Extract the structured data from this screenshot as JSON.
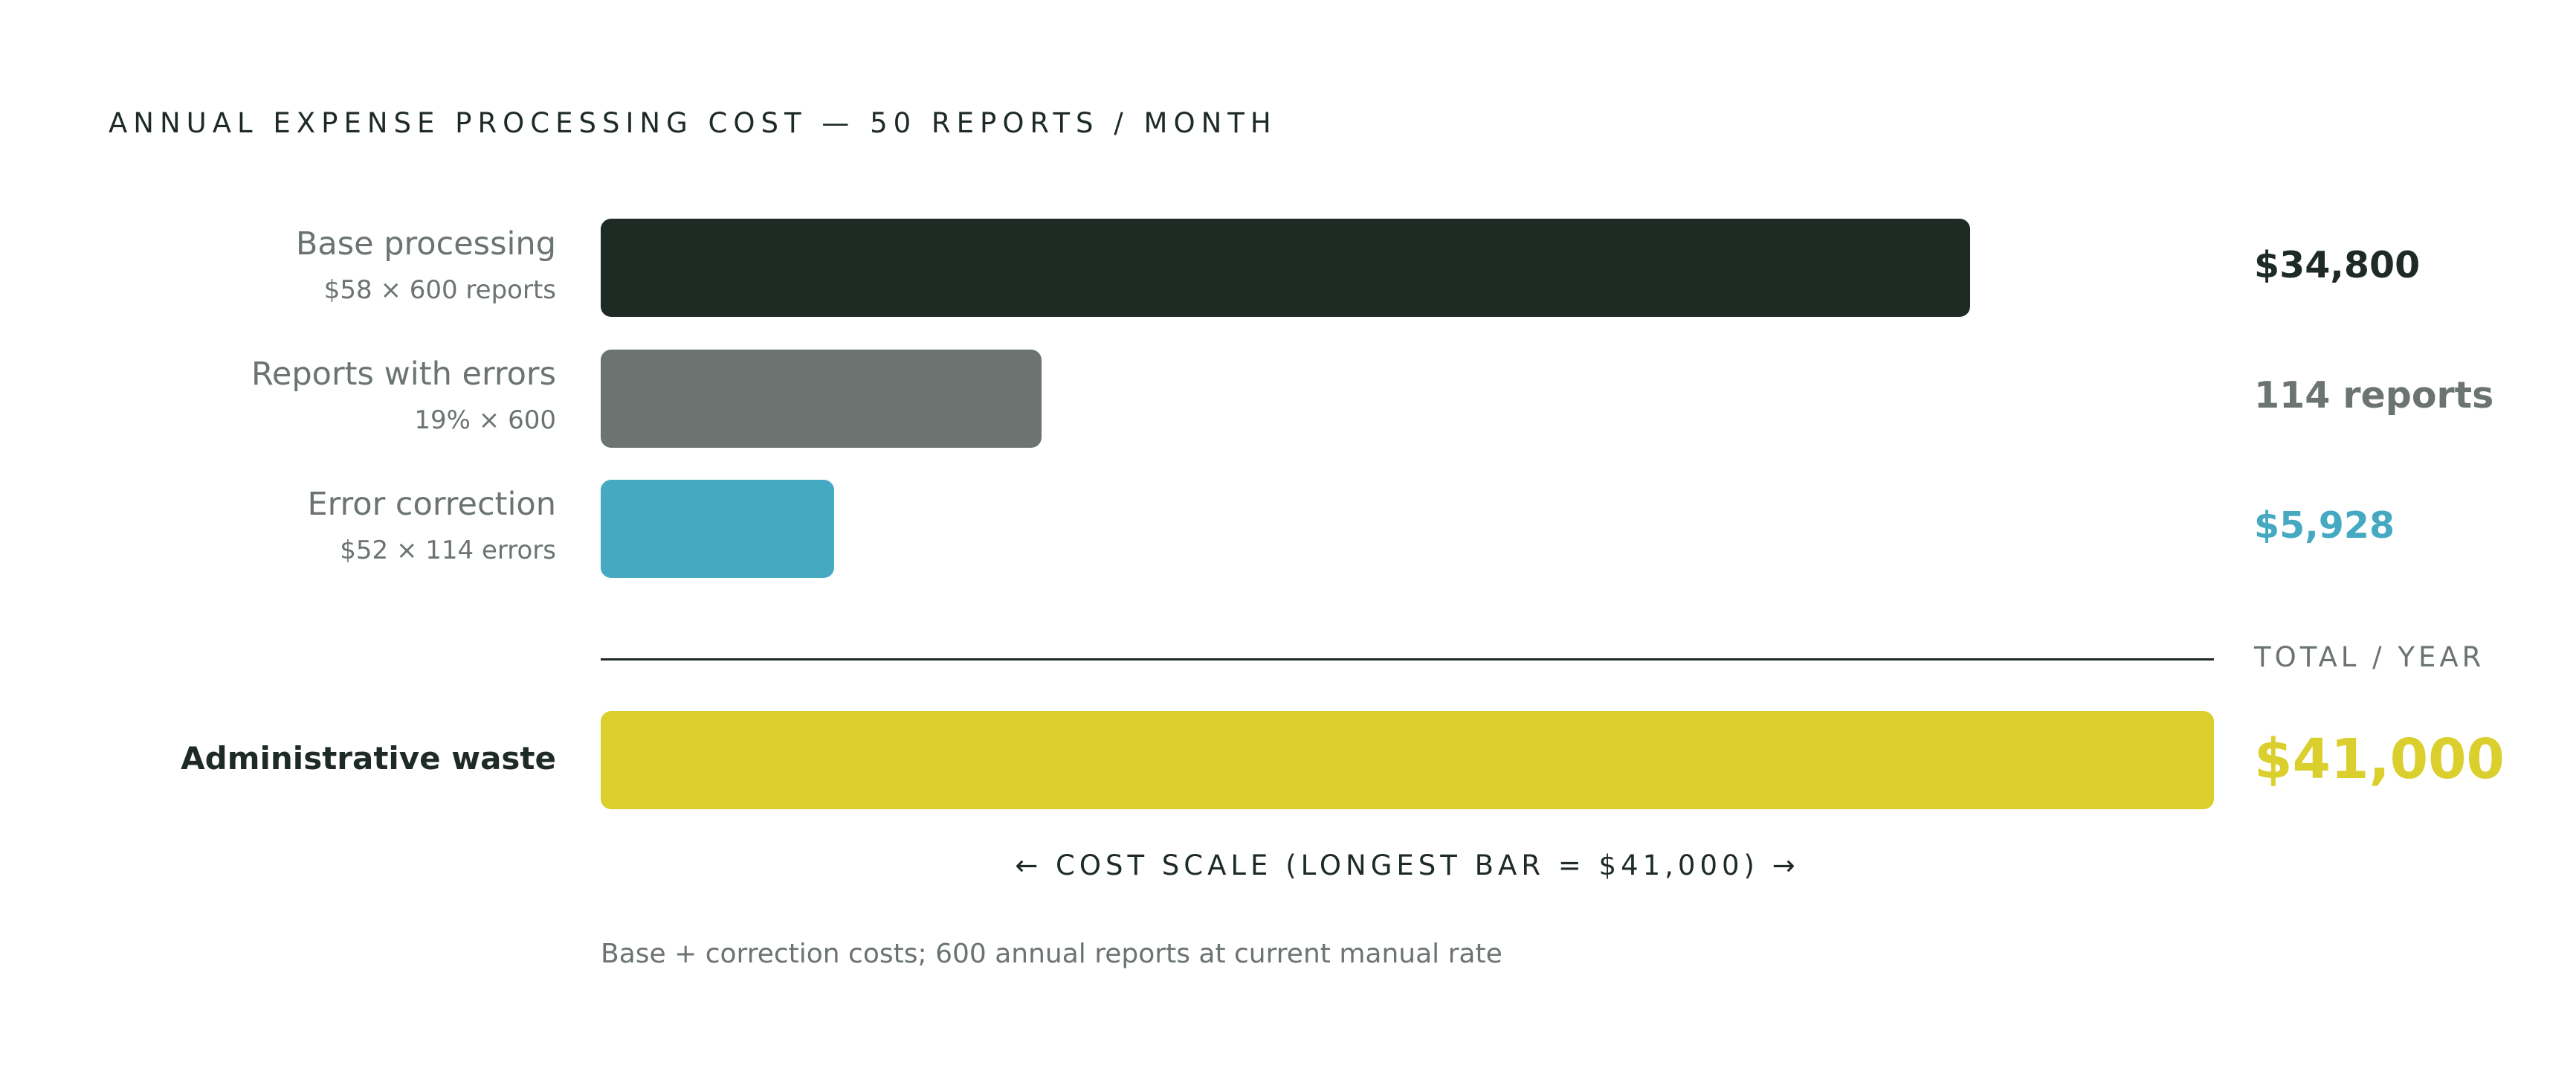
{
  "title": "ANNUAL EXPENSE PROCESSING COST — 50 REPORTS / MONTH",
  "colors": {
    "ink": "#1e2b25",
    "gray": "#6b7470",
    "teal": "#45a9c2",
    "yellow": "#dbcf2e"
  },
  "chart_data": {
    "type": "bar",
    "orientation": "horizontal",
    "scale_max": 41000,
    "scale_note": "← COST SCALE (LONGEST BAR = $41,000) →",
    "rows": [
      {
        "label": "Base processing",
        "sublabel": "$58 × 600 reports",
        "value": 34800,
        "display": "$34,800",
        "color": "#1e2b25"
      },
      {
        "label": "Reports with errors",
        "sublabel": "19% × 600",
        "value": 11200,
        "display": "114 reports",
        "color": "#6b7470"
      },
      {
        "label": "Error correction",
        "sublabel": "$52 × 114 errors",
        "value": 5928,
        "display": "$5,928",
        "color": "#45a9c2"
      }
    ],
    "total": {
      "caption": "TOTAL / YEAR",
      "label": "Administrative waste",
      "value": 41000,
      "display": "$41,000",
      "color": "#dbcf2e"
    }
  },
  "footnote": "Base + correction costs; 600 annual reports at current manual rate"
}
